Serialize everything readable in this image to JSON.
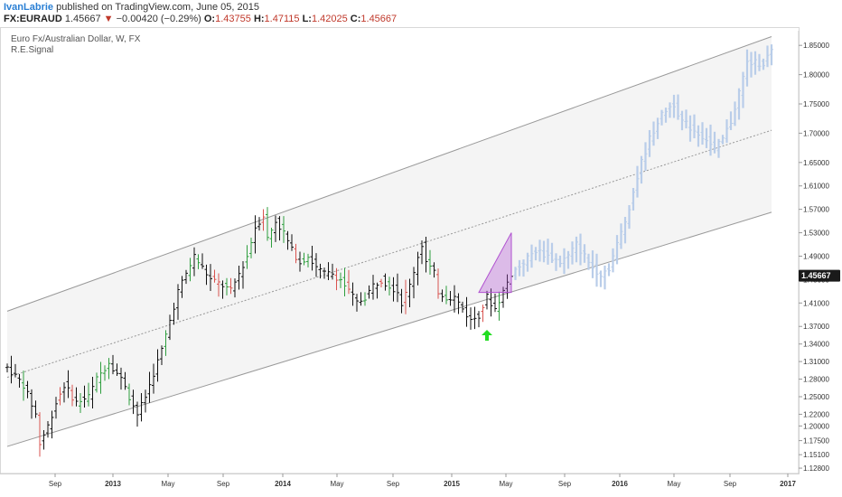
{
  "header": {
    "author": "IvanLabrie",
    "published": "published on TradingView.com, June 05, 2015",
    "symbol": "FX:EURAUD",
    "price": "1.45667",
    "change_arrow": "▼",
    "change": "−0.00420 (−0.29%)",
    "o_label": "O:",
    "o_val": "1.43755",
    "h_label": "H:",
    "h_val": "1.47115",
    "l_label": "L:",
    "l_val": "1.42025",
    "c_label": "C:",
    "c_val": "1.45667"
  },
  "chart_title": "Euro Fx/Australian Dollar, W, FX",
  "indicator_label": "R.E.Signal",
  "colors": {
    "up": "#2e9e3e",
    "down": "#d9534f",
    "neutral": "#111111",
    "projection": "#b9cde9",
    "channel_line": "#999999",
    "triangle": "#b050d0",
    "signal_arrow": "#22dd22",
    "price_tag": "#1a1a1a"
  },
  "chart_data": {
    "type": "ohlc",
    "timeframe": "W",
    "ylim": [
      1.125,
      1.875
    ],
    "y_ticks": [
      "1.85000",
      "1.80000",
      "1.75000",
      "1.70000",
      "1.65000",
      "1.61000",
      "1.57000",
      "1.53000",
      "1.49000",
      "1.45000",
      "1.41000",
      "1.37000",
      "1.34000",
      "1.31000",
      "1.28000",
      "1.25000",
      "1.22000",
      "1.20000",
      "1.17500",
      "1.15100",
      "1.12800"
    ],
    "x_ticks": [
      "Sep",
      "2013",
      "May",
      "Sep",
      "2014",
      "May",
      "Sep",
      "2015",
      "May",
      "Sep",
      "2016",
      "May",
      "Sep",
      "2017"
    ],
    "last_price": "1.45667",
    "path": [
      [
        0,
        1.3
      ],
      [
        4,
        1.27
      ],
      [
        7,
        1.22
      ],
      [
        8,
        1.17
      ],
      [
        10,
        1.2
      ],
      [
        12,
        1.24
      ],
      [
        14,
        1.27
      ],
      [
        17,
        1.24
      ],
      [
        20,
        1.25
      ],
      [
        22,
        1.28
      ],
      [
        25,
        1.31
      ],
      [
        27,
        1.29
      ],
      [
        29,
        1.27
      ],
      [
        30,
        1.25
      ],
      [
        32,
        1.22
      ],
      [
        34,
        1.25
      ],
      [
        36,
        1.29
      ],
      [
        38,
        1.33
      ],
      [
        40,
        1.38
      ],
      [
        42,
        1.43
      ],
      [
        44,
        1.46
      ],
      [
        46,
        1.49
      ],
      [
        48,
        1.47
      ],
      [
        50,
        1.45
      ],
      [
        53,
        1.44
      ],
      [
        55,
        1.43
      ],
      [
        57,
        1.46
      ],
      [
        59,
        1.49
      ],
      [
        61,
        1.54
      ],
      [
        63,
        1.56
      ],
      [
        64,
        1.52
      ],
      [
        66,
        1.55
      ],
      [
        68,
        1.53
      ],
      [
        70,
        1.5
      ],
      [
        72,
        1.48
      ],
      [
        74,
        1.49
      ],
      [
        76,
        1.47
      ],
      [
        78,
        1.46
      ],
      [
        80,
        1.46
      ],
      [
        82,
        1.45
      ],
      [
        84,
        1.43
      ],
      [
        86,
        1.41
      ],
      [
        88,
        1.42
      ],
      [
        90,
        1.44
      ],
      [
        92,
        1.45
      ],
      [
        94,
        1.44
      ],
      [
        96,
        1.43
      ],
      [
        97,
        1.41
      ],
      [
        99,
        1.44
      ],
      [
        101,
        1.49
      ],
      [
        102,
        1.51
      ],
      [
        103,
        1.48
      ],
      [
        105,
        1.46
      ],
      [
        106,
        1.43
      ],
      [
        108,
        1.42
      ],
      [
        110,
        1.42
      ],
      [
        112,
        1.4
      ],
      [
        114,
        1.38
      ],
      [
        116,
        1.39
      ],
      [
        118,
        1.42
      ],
      [
        120,
        1.4
      ],
      [
        122,
        1.43
      ],
      [
        124,
        1.46
      ]
    ],
    "projection_path": [
      [
        124,
        1.46
      ],
      [
        127,
        1.48
      ],
      [
        130,
        1.5
      ],
      [
        133,
        1.49
      ],
      [
        136,
        1.48
      ],
      [
        138,
        1.49
      ],
      [
        140,
        1.51
      ],
      [
        142,
        1.49
      ],
      [
        144,
        1.47
      ],
      [
        146,
        1.46
      ],
      [
        148,
        1.47
      ],
      [
        150,
        1.51
      ],
      [
        152,
        1.55
      ],
      [
        154,
        1.6
      ],
      [
        156,
        1.65
      ],
      [
        158,
        1.69
      ],
      [
        160,
        1.72
      ],
      [
        162,
        1.74
      ],
      [
        164,
        1.75
      ],
      [
        166,
        1.72
      ],
      [
        168,
        1.71
      ],
      [
        170,
        1.7
      ],
      [
        172,
        1.69
      ],
      [
        174,
        1.67
      ],
      [
        176,
        1.69
      ],
      [
        178,
        1.72
      ],
      [
        180,
        1.77
      ],
      [
        182,
        1.82
      ],
      [
        184,
        1.82
      ],
      [
        186,
        1.82
      ],
      [
        188,
        1.84
      ]
    ],
    "channel": {
      "upper": [
        [
          0,
          1.396
        ],
        [
          188,
          1.865
        ]
      ],
      "middle": [
        [
          0,
          1.283
        ],
        [
          188,
          1.705
        ]
      ],
      "lower": [
        [
          0,
          1.165
        ],
        [
          188,
          1.565
        ]
      ]
    },
    "triangle": [
      [
        116,
        1.428
      ],
      [
        124,
        1.428
      ],
      [
        124,
        1.53
      ]
    ],
    "signal_arrow_bar": 118
  }
}
